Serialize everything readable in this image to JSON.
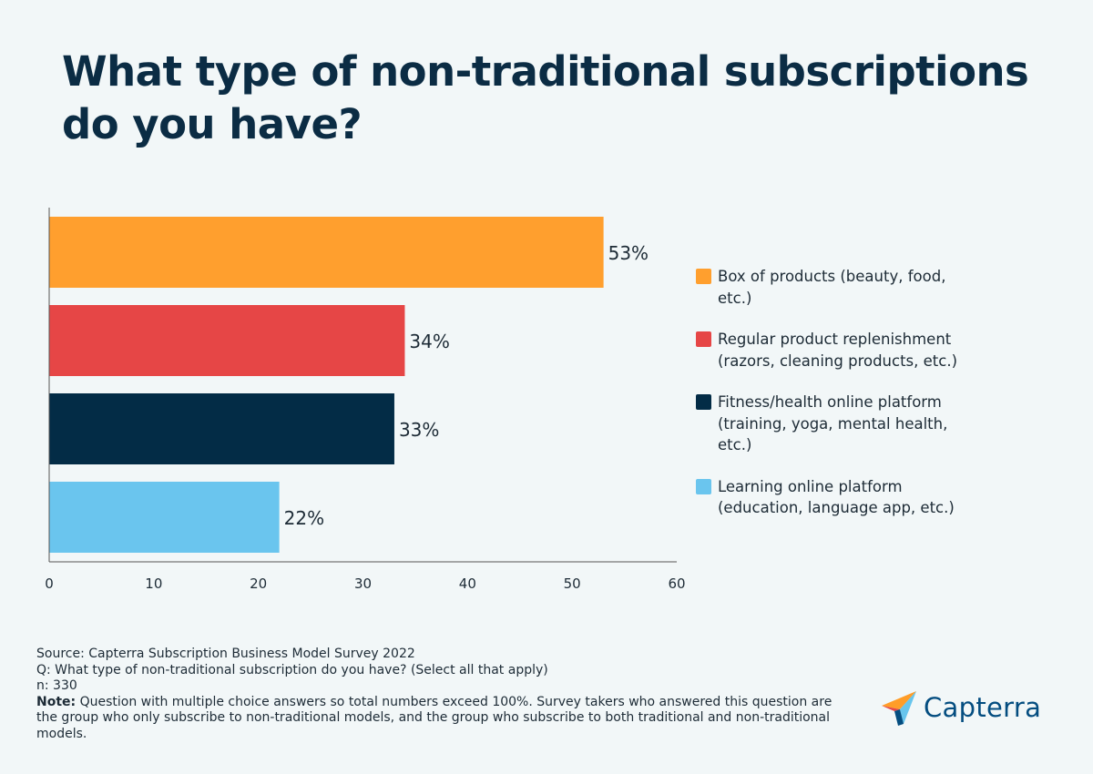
{
  "title": "What type of non-traditional subscriptions do you have?",
  "chart_data": {
    "type": "bar",
    "orientation": "horizontal",
    "categories": [
      "Box of products (beauty, food, etc.)",
      "Regular product replenishment (razors, cleaning products, etc.)",
      "Fitness/health online platform (training, yoga, mental health, etc.)",
      "Learning online platform (education, language app, etc.)"
    ],
    "values": [
      53,
      34,
      33,
      22
    ],
    "data_labels": [
      "53%",
      "34%",
      "33%",
      "22%"
    ],
    "colors": [
      "#ff9f2e",
      "#e64646",
      "#032c46",
      "#6ac5ee"
    ],
    "xlim": [
      0,
      60
    ],
    "xticks": [
      "0",
      "10",
      "20",
      "30",
      "40",
      "50",
      "60"
    ],
    "grid": false,
    "legend_position": "right"
  },
  "footer": {
    "source": "Source: Capterra Subscription Business Model Survey 2022",
    "question": "Q: What type of non-traditional subscription do you have? (Select all that apply)",
    "n": "n: 330",
    "note_label": "Note:",
    "note_text": " Question with multiple choice answers so total numbers exceed 100%. Survey takers who answered this question are the group who only subscribe to non-traditional models, and the group who subscribe to both traditional and non-traditional models."
  },
  "logo": {
    "text": "Capterra",
    "icon": "capterra-arrow-icon"
  }
}
